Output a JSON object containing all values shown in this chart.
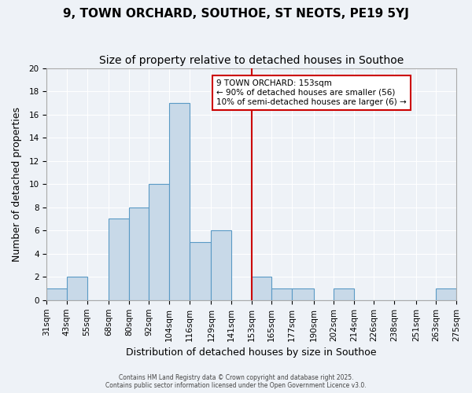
{
  "title": "9, TOWN ORCHARD, SOUTHOE, ST NEOTS, PE19 5YJ",
  "subtitle": "Size of property relative to detached houses in Southoe",
  "xlabel": "Distribution of detached houses by size in Southoe",
  "ylabel": "Number of detached properties",
  "bin_edges": [
    31,
    43,
    55,
    68,
    80,
    92,
    104,
    116,
    129,
    141,
    153,
    165,
    177,
    190,
    202,
    214,
    226,
    238,
    251,
    263,
    275
  ],
  "bin_labels": [
    "31sqm",
    "43sqm",
    "55sqm",
    "68sqm",
    "80sqm",
    "92sqm",
    "104sqm",
    "116sqm",
    "129sqm",
    "141sqm",
    "153sqm",
    "165sqm",
    "177sqm",
    "190sqm",
    "202sqm",
    "214sqm",
    "226sqm",
    "238sqm",
    "251sqm",
    "263sqm",
    "275sqm"
  ],
  "counts": [
    1,
    2,
    0,
    7,
    8,
    10,
    17,
    5,
    6,
    0,
    2,
    1,
    1,
    0,
    1,
    0,
    0,
    0,
    0,
    1
  ],
  "bar_color": "#c8d9e8",
  "bar_edge_color": "#5a9ac5",
  "vline_x": 153,
  "vline_color": "#cc0000",
  "ylim": [
    0,
    20
  ],
  "yticks": [
    0,
    2,
    4,
    6,
    8,
    10,
    12,
    14,
    16,
    18,
    20
  ],
  "annotation_title": "9 TOWN ORCHARD: 153sqm",
  "annotation_line1": "← 90% of detached houses are smaller (56)",
  "annotation_line2": "10% of semi-detached houses are larger (6) →",
  "annotation_box_color": "#ffffff",
  "annotation_box_edge_color": "#cc0000",
  "footer_line1": "Contains HM Land Registry data © Crown copyright and database right 2025.",
  "footer_line2": "Contains public sector information licensed under the Open Government Licence v3.0.",
  "background_color": "#eef2f7",
  "grid_color": "#ffffff",
  "title_fontsize": 11,
  "subtitle_fontsize": 10,
  "axis_label_fontsize": 9,
  "tick_fontsize": 7.5
}
